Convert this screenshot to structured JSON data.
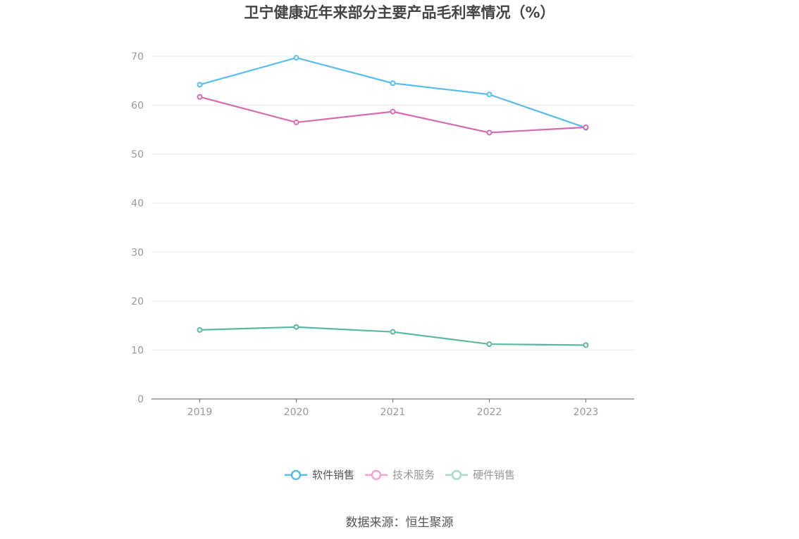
{
  "chart_data": {
    "type": "line",
    "title": "卫宁健康近年来部分主要产品毛利率情况（%）",
    "categories": [
      "2019",
      "2020",
      "2021",
      "2022",
      "2023"
    ],
    "ylim": [
      0,
      70
    ],
    "yticks": [
      0,
      10,
      20,
      30,
      40,
      50,
      60,
      70
    ],
    "grid": true,
    "legend_position": "bottom",
    "series": [
      {
        "name": "软件销售",
        "color": "#56bdee",
        "values": [
          64.2,
          69.7,
          64.5,
          62.2,
          55.4
        ]
      },
      {
        "name": "技术服务",
        "color": "#d66bb0",
        "values": [
          61.7,
          56.5,
          58.7,
          54.4,
          55.5
        ]
      },
      {
        "name": "硬件销售",
        "color": "#5ab9a0",
        "values": [
          14.1,
          14.7,
          13.7,
          11.2,
          11.0
        ]
      }
    ],
    "legend_colors": [
      "#56bdee",
      "#f0a6d0",
      "#a6dcca"
    ],
    "legend_text_colors": [
      "#555555",
      "#999999",
      "#999999"
    ],
    "grid_color": "#e6e9f0",
    "axis_color": "#777777",
    "tick_label_color": "#999999",
    "source": "数据来源：恒生聚源"
  }
}
